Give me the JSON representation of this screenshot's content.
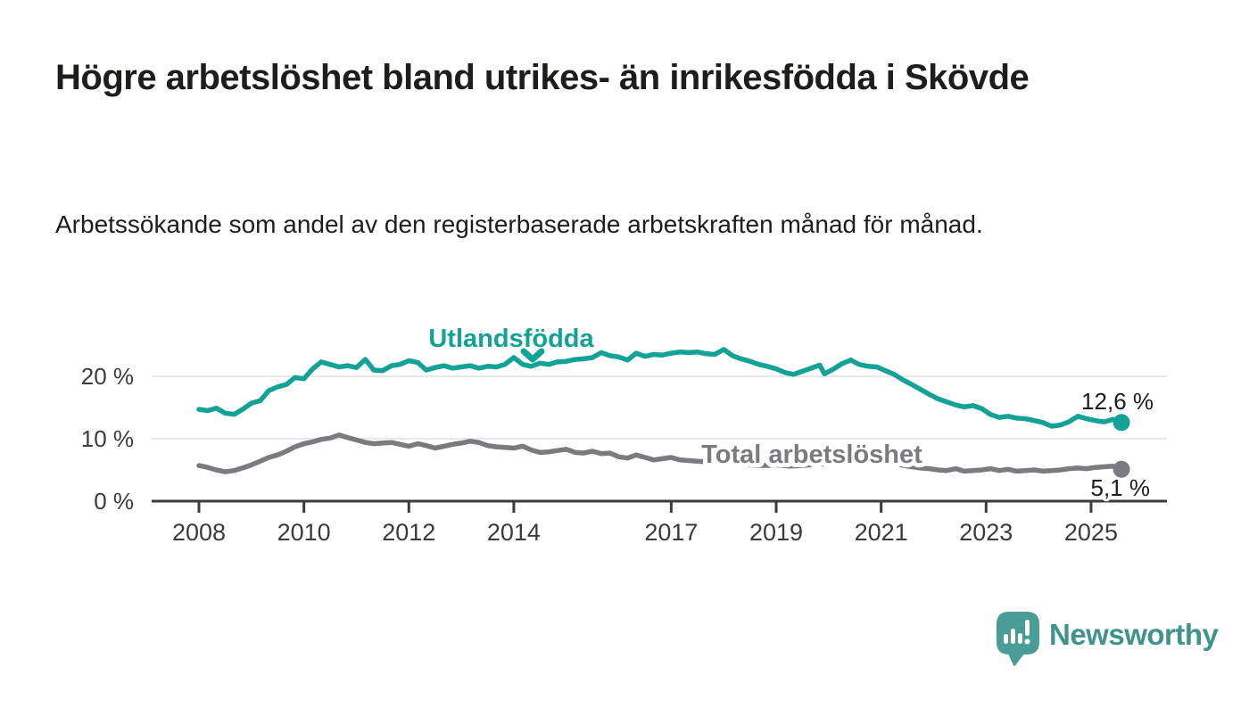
{
  "header": {
    "title": "Högre arbetslöshet bland utrikes- än inrikesfödda i Skövde",
    "subtitle": "Arbetssökande som andel av den registerbaserade arbetskraften månad för månad."
  },
  "colors": {
    "foreign_born": "#12a296",
    "total": "#7b7a80",
    "grid": "#e2e2e2",
    "axis": "#3b3b3b",
    "text": "#1d1d1b",
    "logo_icon": "#4a9d96",
    "logo_text": "#3e938c",
    "background": "#ffffff"
  },
  "branding": {
    "name": "Newsworthy",
    "icon": "chart-speech-bubble-pin"
  },
  "chart_data": {
    "type": "line",
    "title": "Högre arbetslöshet bland utrikes- än inrikesfödda i Skövde",
    "subtitle": "Arbetssökande som andel av den registerbaserade arbetskraften månad för månad.",
    "unit": "%",
    "grid": true,
    "legend_position": "inline-labels",
    "x_axis": {
      "range": [
        2007.1,
        2026.5
      ],
      "ticks": [
        {
          "value": 2008,
          "label": "2008"
        },
        {
          "value": 2010,
          "label": "2010"
        },
        {
          "value": 2012,
          "label": "2012"
        },
        {
          "value": 2014,
          "label": "2014"
        },
        {
          "value": 2017,
          "label": "2017"
        },
        {
          "value": 2019,
          "label": "2019"
        },
        {
          "value": 2021,
          "label": "2021"
        },
        {
          "value": 2023,
          "label": "2023"
        },
        {
          "value": 2025,
          "label": "2025"
        }
      ]
    },
    "y_axis": {
      "range": [
        0,
        26
      ],
      "ticks": [
        {
          "value": 0,
          "label": "0 %"
        },
        {
          "value": 10,
          "label": "10 %"
        },
        {
          "value": 20,
          "label": "20 %"
        }
      ]
    },
    "series": [
      {
        "name": "Utlandsfödda",
        "color": "#12a296",
        "end_value": 12.6,
        "end_label": "12,6 %",
        "points": [
          [
            2008.0,
            14.7
          ],
          [
            2008.17,
            14.5
          ],
          [
            2008.33,
            14.9
          ],
          [
            2008.5,
            14.1
          ],
          [
            2008.67,
            13.9
          ],
          [
            2008.83,
            14.7
          ],
          [
            2009.0,
            15.7
          ],
          [
            2009.17,
            16.1
          ],
          [
            2009.33,
            17.7
          ],
          [
            2009.5,
            18.3
          ],
          [
            2009.67,
            18.7
          ],
          [
            2009.83,
            19.8
          ],
          [
            2010.0,
            19.6
          ],
          [
            2010.17,
            21.2
          ],
          [
            2010.33,
            22.3
          ],
          [
            2010.5,
            21.9
          ],
          [
            2010.67,
            21.5
          ],
          [
            2010.83,
            21.7
          ],
          [
            2011.0,
            21.4
          ],
          [
            2011.17,
            22.7
          ],
          [
            2011.33,
            21.0
          ],
          [
            2011.5,
            20.9
          ],
          [
            2011.67,
            21.7
          ],
          [
            2011.83,
            21.9
          ],
          [
            2012.0,
            22.5
          ],
          [
            2012.17,
            22.2
          ],
          [
            2012.33,
            21.0
          ],
          [
            2012.5,
            21.4
          ],
          [
            2012.67,
            21.7
          ],
          [
            2012.83,
            21.3
          ],
          [
            2013.0,
            21.5
          ],
          [
            2013.17,
            21.7
          ],
          [
            2013.33,
            21.3
          ],
          [
            2013.5,
            21.6
          ],
          [
            2013.67,
            21.5
          ],
          [
            2013.83,
            21.9
          ],
          [
            2014.0,
            23.0
          ],
          [
            2014.17,
            21.9
          ],
          [
            2014.33,
            21.6
          ],
          [
            2014.5,
            22.1
          ],
          [
            2014.67,
            21.9
          ],
          [
            2014.83,
            22.3
          ],
          [
            2015.0,
            22.4
          ],
          [
            2015.17,
            22.7
          ],
          [
            2015.33,
            22.8
          ],
          [
            2015.5,
            23.0
          ],
          [
            2015.67,
            23.8
          ],
          [
            2015.83,
            23.3
          ],
          [
            2016.0,
            23.1
          ],
          [
            2016.17,
            22.6
          ],
          [
            2016.33,
            23.7
          ],
          [
            2016.5,
            23.2
          ],
          [
            2016.67,
            23.5
          ],
          [
            2016.83,
            23.4
          ],
          [
            2017.0,
            23.7
          ],
          [
            2017.17,
            23.9
          ],
          [
            2017.33,
            23.8
          ],
          [
            2017.5,
            23.9
          ],
          [
            2017.67,
            23.6
          ],
          [
            2017.83,
            23.5
          ],
          [
            2018.0,
            24.3
          ],
          [
            2018.17,
            23.3
          ],
          [
            2018.33,
            22.8
          ],
          [
            2018.5,
            22.4
          ],
          [
            2018.67,
            21.9
          ],
          [
            2018.83,
            21.6
          ],
          [
            2019.0,
            21.2
          ],
          [
            2019.17,
            20.6
          ],
          [
            2019.33,
            20.3
          ],
          [
            2019.5,
            20.8
          ],
          [
            2019.67,
            21.3
          ],
          [
            2019.83,
            21.8
          ],
          [
            2019.92,
            20.4
          ],
          [
            2020.08,
            21.1
          ],
          [
            2020.25,
            22.0
          ],
          [
            2020.42,
            22.6
          ],
          [
            2020.58,
            21.9
          ],
          [
            2020.75,
            21.6
          ],
          [
            2020.92,
            21.5
          ],
          [
            2021.08,
            20.9
          ],
          [
            2021.25,
            20.3
          ],
          [
            2021.42,
            19.4
          ],
          [
            2021.58,
            18.7
          ],
          [
            2021.75,
            17.9
          ],
          [
            2021.92,
            17.1
          ],
          [
            2022.08,
            16.4
          ],
          [
            2022.25,
            15.9
          ],
          [
            2022.42,
            15.4
          ],
          [
            2022.58,
            15.1
          ],
          [
            2022.75,
            15.3
          ],
          [
            2022.92,
            14.8
          ],
          [
            2023.08,
            13.9
          ],
          [
            2023.25,
            13.4
          ],
          [
            2023.42,
            13.6
          ],
          [
            2023.58,
            13.3
          ],
          [
            2023.75,
            13.2
          ],
          [
            2023.92,
            12.9
          ],
          [
            2024.08,
            12.6
          ],
          [
            2024.25,
            12.0
          ],
          [
            2024.42,
            12.2
          ],
          [
            2024.58,
            12.7
          ],
          [
            2024.75,
            13.6
          ],
          [
            2024.92,
            13.2
          ],
          [
            2025.08,
            12.9
          ],
          [
            2025.25,
            12.7
          ],
          [
            2025.42,
            13.1
          ],
          [
            2025.58,
            12.6
          ]
        ]
      },
      {
        "name": "Total arbetslöshet",
        "color": "#7b7a80",
        "end_value": 5.1,
        "end_label": "5,1 %",
        "points": [
          [
            2008.0,
            5.7
          ],
          [
            2008.17,
            5.4
          ],
          [
            2008.33,
            5.0
          ],
          [
            2008.5,
            4.7
          ],
          [
            2008.67,
            4.9
          ],
          [
            2008.83,
            5.3
          ],
          [
            2009.0,
            5.8
          ],
          [
            2009.17,
            6.4
          ],
          [
            2009.33,
            7.0
          ],
          [
            2009.5,
            7.4
          ],
          [
            2009.67,
            8.0
          ],
          [
            2009.83,
            8.7
          ],
          [
            2010.0,
            9.2
          ],
          [
            2010.17,
            9.5
          ],
          [
            2010.33,
            9.9
          ],
          [
            2010.5,
            10.1
          ],
          [
            2010.67,
            10.6
          ],
          [
            2010.83,
            10.2
          ],
          [
            2011.0,
            9.8
          ],
          [
            2011.17,
            9.4
          ],
          [
            2011.33,
            9.2
          ],
          [
            2011.5,
            9.3
          ],
          [
            2011.67,
            9.4
          ],
          [
            2011.83,
            9.1
          ],
          [
            2012.0,
            8.8
          ],
          [
            2012.17,
            9.2
          ],
          [
            2012.33,
            8.9
          ],
          [
            2012.5,
            8.5
          ],
          [
            2012.67,
            8.8
          ],
          [
            2012.83,
            9.1
          ],
          [
            2013.0,
            9.3
          ],
          [
            2013.17,
            9.6
          ],
          [
            2013.33,
            9.4
          ],
          [
            2013.5,
            8.9
          ],
          [
            2013.67,
            8.7
          ],
          [
            2013.83,
            8.6
          ],
          [
            2014.0,
            8.5
          ],
          [
            2014.17,
            8.8
          ],
          [
            2014.33,
            8.2
          ],
          [
            2014.5,
            7.8
          ],
          [
            2014.67,
            7.9
          ],
          [
            2014.83,
            8.1
          ],
          [
            2015.0,
            8.3
          ],
          [
            2015.17,
            7.8
          ],
          [
            2015.33,
            7.7
          ],
          [
            2015.5,
            8.0
          ],
          [
            2015.67,
            7.6
          ],
          [
            2015.83,
            7.7
          ],
          [
            2016.0,
            7.1
          ],
          [
            2016.17,
            6.9
          ],
          [
            2016.33,
            7.4
          ],
          [
            2016.5,
            7.0
          ],
          [
            2016.67,
            6.6
          ],
          [
            2016.83,
            6.8
          ],
          [
            2017.0,
            7.0
          ],
          [
            2017.17,
            6.6
          ],
          [
            2017.33,
            6.5
          ],
          [
            2017.5,
            6.4
          ],
          [
            2017.67,
            6.3
          ],
          [
            2017.83,
            6.2
          ],
          [
            2018.0,
            6.3
          ],
          [
            2018.25,
            6.0
          ],
          [
            2018.5,
            5.8
          ],
          [
            2018.75,
            5.7
          ],
          [
            2019.0,
            5.8
          ],
          [
            2019.25,
            5.6
          ],
          [
            2019.5,
            5.7
          ],
          [
            2019.75,
            5.9
          ],
          [
            2020.0,
            6.0
          ],
          [
            2020.25,
            6.8
          ],
          [
            2020.42,
            7.2
          ],
          [
            2020.58,
            7.0
          ],
          [
            2020.75,
            6.7
          ],
          [
            2021.0,
            6.4
          ],
          [
            2021.25,
            6.0
          ],
          [
            2021.5,
            5.6
          ],
          [
            2021.75,
            5.3
          ],
          [
            2021.92,
            5.2
          ],
          [
            2022.08,
            5.0
          ],
          [
            2022.25,
            4.9
          ],
          [
            2022.42,
            5.2
          ],
          [
            2022.58,
            4.8
          ],
          [
            2022.75,
            4.9
          ],
          [
            2022.92,
            5.0
          ],
          [
            2023.08,
            5.2
          ],
          [
            2023.25,
            4.9
          ],
          [
            2023.42,
            5.1
          ],
          [
            2023.58,
            4.8
          ],
          [
            2023.75,
            4.9
          ],
          [
            2023.92,
            5.0
          ],
          [
            2024.08,
            4.8
          ],
          [
            2024.25,
            4.9
          ],
          [
            2024.42,
            5.0
          ],
          [
            2024.58,
            5.2
          ],
          [
            2024.75,
            5.3
          ],
          [
            2024.92,
            5.2
          ],
          [
            2025.08,
            5.4
          ],
          [
            2025.25,
            5.5
          ],
          [
            2025.42,
            5.6
          ],
          [
            2025.58,
            5.1
          ]
        ]
      }
    ]
  }
}
